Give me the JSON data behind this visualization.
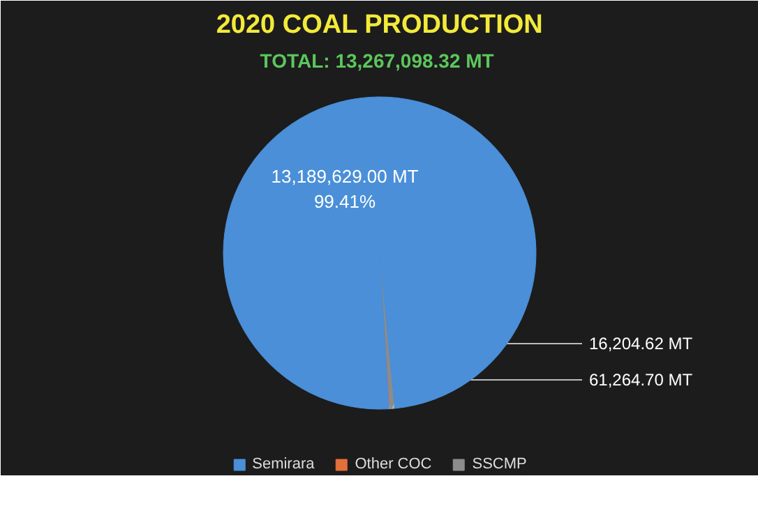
{
  "chart_data": {
    "type": "pie",
    "title": "2020 COAL PRODUCTION",
    "subtitle": "TOTAL:  13,267,098.32 MT",
    "categories": [
      "Semirara",
      "Other COC",
      "SSCMP"
    ],
    "values": [
      13189629.0,
      16204.62,
      61264.7
    ],
    "colors": [
      "#4a8fd8",
      "#e2703a",
      "#8c8c8c"
    ],
    "value_labels": [
      "13,189,629.00 MT\n99.41%",
      "16,204.62 MT",
      "61,264.70 MT"
    ],
    "legend": "bottom"
  }
}
